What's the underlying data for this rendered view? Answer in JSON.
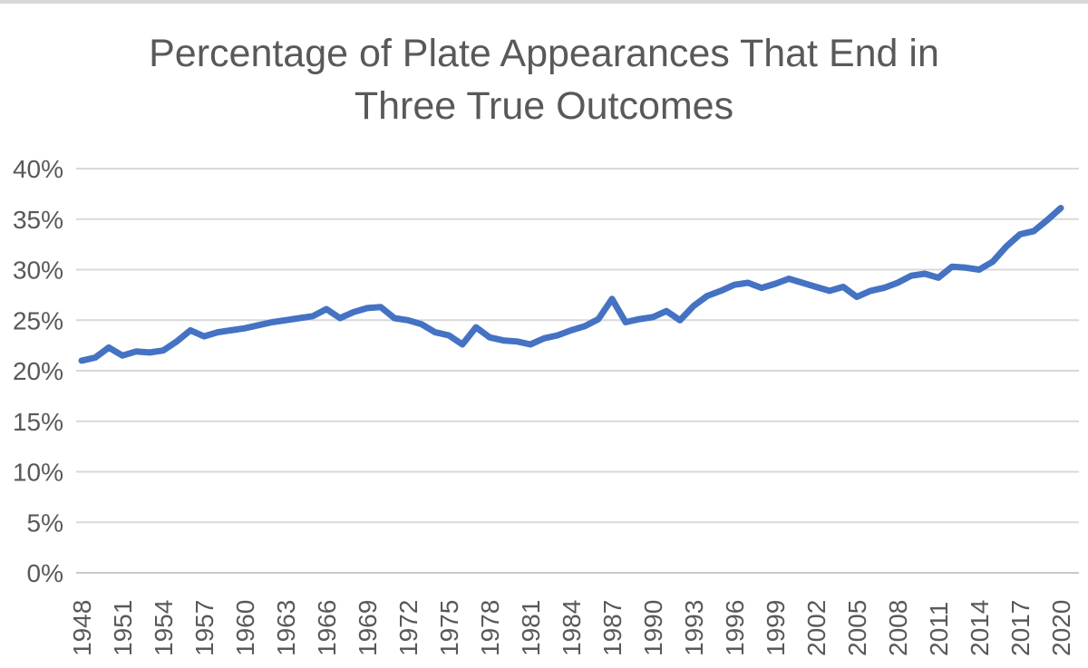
{
  "title": {
    "line1": "Percentage of Plate Appearances That End in",
    "line2": "Three True Outcomes"
  },
  "chart_data": {
    "type": "line",
    "title": "Percentage of Plate Appearances That End in Three True Outcomes",
    "xlabel": "",
    "ylabel": "",
    "ylim": [
      0,
      40
    ],
    "y_tick_step": 5,
    "y_tick_labels": [
      "0%",
      "5%",
      "10%",
      "15%",
      "20%",
      "25%",
      "30%",
      "35%",
      "40%"
    ],
    "x_tick_years": [
      1948,
      1951,
      1954,
      1957,
      1960,
      1963,
      1966,
      1969,
      1972,
      1975,
      1978,
      1981,
      1984,
      1987,
      1990,
      1993,
      1996,
      1999,
      2002,
      2005,
      2008,
      2011,
      2014,
      2017,
      2020
    ],
    "grid": "horizontal",
    "legend": "none",
    "line_color": "#4472C4",
    "grid_color": "#D9D9D9",
    "axis_line_color": "#C9C9C9",
    "tick_label_color": "#595959",
    "title_color": "#595959",
    "line_width": 7,
    "years": [
      1948,
      1949,
      1950,
      1951,
      1952,
      1953,
      1954,
      1955,
      1956,
      1957,
      1958,
      1959,
      1960,
      1961,
      1962,
      1963,
      1964,
      1965,
      1966,
      1967,
      1968,
      1969,
      1970,
      1971,
      1972,
      1973,
      1974,
      1975,
      1976,
      1977,
      1978,
      1979,
      1980,
      1981,
      1982,
      1983,
      1984,
      1985,
      1986,
      1987,
      1988,
      1989,
      1990,
      1991,
      1992,
      1993,
      1994,
      1995,
      1996,
      1997,
      1998,
      1999,
      2000,
      2001,
      2002,
      2003,
      2004,
      2005,
      2006,
      2007,
      2008,
      2009,
      2010,
      2011,
      2012,
      2013,
      2014,
      2015,
      2016,
      2017,
      2018,
      2019,
      2020
    ],
    "values": [
      21.0,
      21.3,
      22.3,
      21.5,
      21.9,
      21.8,
      22.0,
      22.9,
      24.0,
      23.4,
      23.8,
      24.0,
      24.2,
      24.5,
      24.8,
      25.0,
      25.2,
      25.4,
      26.1,
      25.2,
      25.8,
      26.2,
      26.3,
      25.2,
      25.0,
      24.6,
      23.8,
      23.5,
      22.6,
      24.3,
      23.3,
      23.0,
      22.9,
      22.6,
      23.2,
      23.5,
      24.0,
      24.4,
      25.1,
      27.1,
      24.8,
      25.1,
      25.3,
      25.9,
      25.0,
      26.4,
      27.4,
      27.9,
      28.5,
      28.7,
      28.2,
      28.6,
      29.1,
      28.7,
      28.3,
      27.9,
      28.3,
      27.3,
      27.9,
      28.2,
      28.7,
      29.4,
      29.6,
      29.2,
      30.3,
      30.2,
      30.0,
      30.8,
      32.3,
      33.5,
      33.8,
      34.9,
      36.1
    ]
  }
}
